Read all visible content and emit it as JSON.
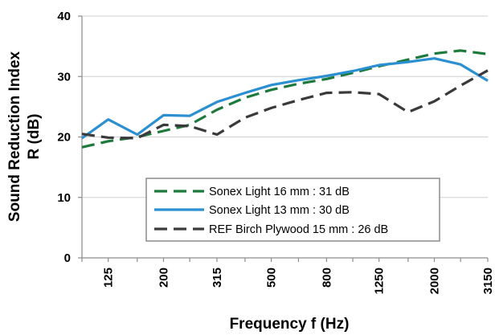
{
  "chart_data": {
    "type": "line",
    "xlabel": "Frequency f (Hz)",
    "ylabel_lines": [
      "Sound Reduction Index",
      "R (dB)"
    ],
    "x_ticks": [
      "125",
      "200",
      "315",
      "500",
      "800",
      "1250",
      "2000",
      "3150"
    ],
    "y_ticks": [
      0,
      10,
      20,
      30,
      40
    ],
    "ylim": [
      0,
      40
    ],
    "xlim": [
      100,
      3150
    ],
    "x_scale": "log",
    "grid": "horizontal",
    "legend_position": "center",
    "x": [
      100,
      125,
      160,
      200,
      250,
      315,
      400,
      500,
      630,
      800,
      1000,
      1250,
      1600,
      2000,
      2500,
      3150
    ],
    "series": [
      {
        "name": "Sonex Light 16 mm : 31 dB",
        "color": "#1e7a3c",
        "style": "dashed",
        "values": [
          18.3,
          19.3,
          20.0,
          21.0,
          22.0,
          24.5,
          26.5,
          27.8,
          28.8,
          29.6,
          30.6,
          31.7,
          32.8,
          33.8,
          34.3,
          33.7
        ]
      },
      {
        "name": "Sonex Light 13 mm : 30 dB",
        "color": "#2b8fd1",
        "style": "solid",
        "values": [
          19.8,
          22.9,
          20.4,
          23.6,
          23.5,
          25.8,
          27.3,
          28.6,
          29.4,
          30.1,
          30.9,
          31.9,
          32.4,
          33.0,
          32.0,
          29.3
        ]
      },
      {
        "name": "REF Birch Plywood 15 mm : 26 dB",
        "color": "#3a3a3a",
        "style": "dashed",
        "values": [
          20.5,
          19.9,
          19.8,
          22.0,
          21.8,
          20.4,
          23.2,
          24.8,
          26.1,
          27.3,
          27.4,
          27.1,
          24.1,
          25.9,
          28.5,
          31.0
        ]
      }
    ]
  }
}
